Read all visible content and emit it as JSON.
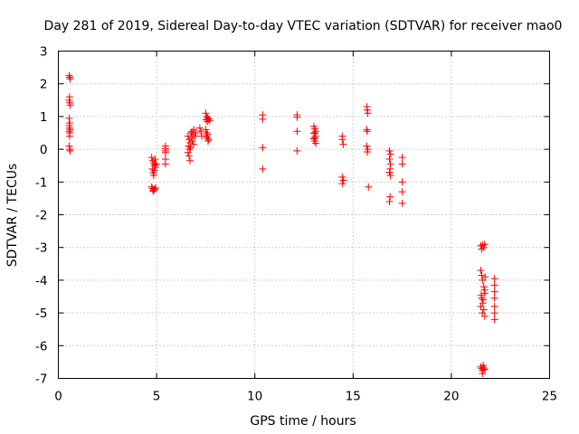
{
  "chart_data": {
    "type": "scatter",
    "title": "Day 281 of 2019, Sidereal Day-to-day VTEC variation (SDTVAR) for receiver mao0",
    "xlabel": "GPS time / hours",
    "ylabel": "SDTVAR / TECUs",
    "xlim": [
      0,
      25
    ],
    "ylim": [
      -7,
      3
    ],
    "xticks": [
      0,
      5,
      10,
      15,
      20,
      25
    ],
    "yticks": [
      -7,
      -6,
      -5,
      -4,
      -3,
      -2,
      -1,
      0,
      1,
      2,
      3
    ],
    "xtick_labels": [
      "0",
      "5",
      "10",
      "15",
      "20",
      "25"
    ],
    "ytick_labels": [
      "-7",
      "-6",
      "-5",
      "-4",
      "-3",
      "-2",
      "-1",
      "0",
      "1",
      "2",
      "3"
    ],
    "grid": true,
    "marker": "+",
    "color": "#ff0000",
    "series": [
      {
        "name": "SDTVAR",
        "points": [
          [
            0.55,
            2.25
          ],
          [
            0.58,
            2.2
          ],
          [
            0.6,
            2.15
          ],
          [
            0.57,
            1.6
          ],
          [
            0.55,
            1.5
          ],
          [
            0.58,
            1.42
          ],
          [
            0.6,
            1.35
          ],
          [
            0.55,
            0.95
          ],
          [
            0.58,
            0.8
          ],
          [
            0.55,
            0.72
          ],
          [
            0.57,
            0.65
          ],
          [
            0.6,
            0.6
          ],
          [
            0.55,
            0.55
          ],
          [
            0.58,
            0.5
          ],
          [
            0.57,
            0.4
          ],
          [
            0.55,
            0.1
          ],
          [
            0.58,
            0.0
          ],
          [
            0.6,
            -0.05
          ],
          [
            4.75,
            -0.25
          ],
          [
            4.8,
            -0.35
          ],
          [
            4.85,
            -0.42
          ],
          [
            4.9,
            -0.48
          ],
          [
            4.95,
            -0.55
          ],
          [
            4.78,
            -0.6
          ],
          [
            4.88,
            -0.65
          ],
          [
            4.82,
            -0.72
          ],
          [
            4.92,
            -0.3
          ],
          [
            4.98,
            -0.45
          ],
          [
            4.85,
            -0.8
          ],
          [
            4.75,
            -1.15
          ],
          [
            4.8,
            -1.2
          ],
          [
            4.85,
            -1.25
          ],
          [
            4.9,
            -1.22
          ],
          [
            4.95,
            -1.18
          ],
          [
            4.82,
            -1.28
          ],
          [
            5.45,
            0.1
          ],
          [
            5.45,
            0.02
          ],
          [
            5.45,
            -0.05
          ],
          [
            5.45,
            -0.1
          ],
          [
            5.45,
            -0.3
          ],
          [
            5.45,
            -0.45
          ],
          [
            6.6,
            0.4
          ],
          [
            6.65,
            0.3
          ],
          [
            6.7,
            0.2
          ],
          [
            6.62,
            0.1
          ],
          [
            6.68,
            0.0
          ],
          [
            6.6,
            -0.1
          ],
          [
            6.65,
            -0.2
          ],
          [
            6.7,
            -0.35
          ],
          [
            6.75,
            0.5
          ],
          [
            6.8,
            0.55
          ],
          [
            6.85,
            0.45
          ],
          [
            6.9,
            0.6
          ],
          [
            6.78,
            0.35
          ],
          [
            6.82,
            0.25
          ],
          [
            6.88,
            0.15
          ],
          [
            6.72,
            0.05
          ],
          [
            6.95,
            0.4
          ],
          [
            7.0,
            0.5
          ],
          [
            7.2,
            0.65
          ],
          [
            7.25,
            0.55
          ],
          [
            7.3,
            0.4
          ],
          [
            7.5,
            1.1
          ],
          [
            7.55,
            1.0
          ],
          [
            7.6,
            0.95
          ],
          [
            7.52,
            0.9
          ],
          [
            7.58,
            0.85
          ],
          [
            7.65,
            0.92
          ],
          [
            7.7,
            0.88
          ],
          [
            7.5,
            0.6
          ],
          [
            7.55,
            0.5
          ],
          [
            7.6,
            0.45
          ],
          [
            7.52,
            0.4
          ],
          [
            7.58,
            0.35
          ],
          [
            7.65,
            0.3
          ],
          [
            7.62,
            0.25
          ],
          [
            10.4,
            1.05
          ],
          [
            10.4,
            0.92
          ],
          [
            10.4,
            0.05
          ],
          [
            10.4,
            -0.6
          ],
          [
            12.15,
            1.05
          ],
          [
            12.15,
            0.98
          ],
          [
            12.15,
            0.55
          ],
          [
            12.15,
            -0.05
          ],
          [
            13.0,
            0.7
          ],
          [
            13.05,
            0.62
          ],
          [
            13.1,
            0.55
          ],
          [
            13.02,
            0.48
          ],
          [
            13.08,
            0.4
          ],
          [
            13.0,
            0.32
          ],
          [
            13.05,
            0.25
          ],
          [
            13.1,
            0.18
          ],
          [
            13.04,
            0.5
          ],
          [
            13.06,
            0.35
          ],
          [
            14.45,
            0.4
          ],
          [
            14.45,
            0.3
          ],
          [
            14.5,
            0.15
          ],
          [
            14.45,
            -0.85
          ],
          [
            14.5,
            -0.95
          ],
          [
            14.45,
            -1.05
          ],
          [
            15.7,
            1.3
          ],
          [
            15.72,
            1.2
          ],
          [
            15.75,
            1.1
          ],
          [
            15.7,
            0.6
          ],
          [
            15.72,
            0.55
          ],
          [
            15.7,
            0.1
          ],
          [
            15.75,
            0.0
          ],
          [
            15.72,
            -0.08
          ],
          [
            15.78,
            -1.15
          ],
          [
            16.85,
            -0.05
          ],
          [
            16.9,
            -0.15
          ],
          [
            16.85,
            -0.3
          ],
          [
            16.9,
            -0.45
          ],
          [
            16.88,
            -0.6
          ],
          [
            16.85,
            -0.7
          ],
          [
            16.9,
            -0.8
          ],
          [
            16.88,
            -1.45
          ],
          [
            16.85,
            -1.6
          ],
          [
            17.5,
            -0.25
          ],
          [
            17.5,
            -0.45
          ],
          [
            17.5,
            -1.0
          ],
          [
            17.5,
            -1.3
          ],
          [
            17.5,
            -1.65
          ],
          [
            21.5,
            -2.95
          ],
          [
            21.55,
            -3.05
          ],
          [
            21.6,
            -2.92
          ],
          [
            21.7,
            -2.9
          ],
          [
            21.65,
            -3.0
          ],
          [
            21.5,
            -3.7
          ],
          [
            21.55,
            -3.85
          ],
          [
            21.6,
            -4.0
          ],
          [
            21.65,
            -4.2
          ],
          [
            21.7,
            -4.4
          ],
          [
            21.55,
            -4.55
          ],
          [
            21.6,
            -4.7
          ],
          [
            21.5,
            -4.8
          ],
          [
            21.65,
            -4.9
          ],
          [
            21.58,
            -5.0
          ],
          [
            21.7,
            -5.1
          ],
          [
            21.62,
            -4.6
          ],
          [
            21.68,
            -4.3
          ],
          [
            21.52,
            -4.45
          ],
          [
            21.72,
            -3.9
          ],
          [
            21.5,
            -6.65
          ],
          [
            21.55,
            -6.7
          ],
          [
            21.6,
            -6.75
          ],
          [
            21.65,
            -6.68
          ],
          [
            21.7,
            -6.72
          ],
          [
            21.58,
            -6.85
          ],
          [
            21.62,
            -6.6
          ],
          [
            22.2,
            -3.95
          ],
          [
            22.2,
            -4.15
          ],
          [
            22.2,
            -4.35
          ],
          [
            22.2,
            -4.55
          ],
          [
            22.2,
            -4.8
          ],
          [
            22.2,
            -5.0
          ],
          [
            22.2,
            -5.2
          ]
        ]
      }
    ]
  }
}
